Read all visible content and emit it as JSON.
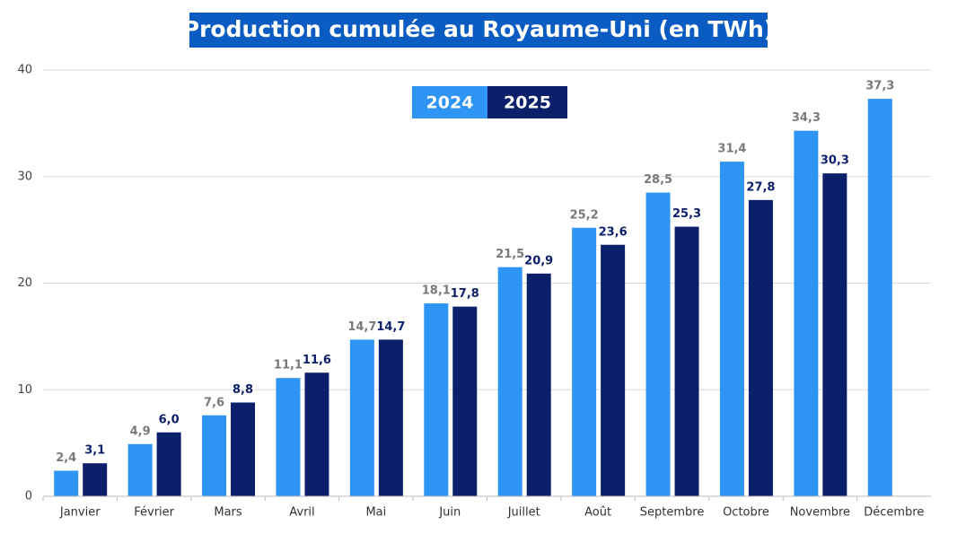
{
  "chart_data": {
    "type": "bar",
    "title": "Production cumulée au Royaume-Uni (en TWh)",
    "categories": [
      "Janvier",
      "Février",
      "Mars",
      "Avril",
      "Mai",
      "Juin",
      "Juillet",
      "Août",
      "Septembre",
      "Octobre",
      "Novembre",
      "Décembre"
    ],
    "series": [
      {
        "name": "2024",
        "color": "#2f95f5",
        "label_color": "#7a7a7a",
        "values": [
          2.4,
          4.9,
          7.6,
          11.1,
          14.7,
          18.1,
          21.5,
          25.2,
          28.5,
          31.4,
          34.3,
          37.3
        ],
        "value_labels": [
          "2,4",
          "4,9",
          "7,6",
          "11,1",
          "14,7",
          "18,1",
          "21,5",
          "25,2",
          "28,5",
          "31,4",
          "34,3",
          "37,3"
        ]
      },
      {
        "name": "2025",
        "color": "#0c1f6b",
        "label_color": "#0c1f6b",
        "values": [
          3.1,
          6.0,
          8.8,
          11.6,
          14.7,
          17.8,
          20.9,
          23.6,
          25.3,
          27.8,
          30.3,
          null
        ],
        "value_labels": [
          "3,1",
          "6,0",
          "8,8",
          "11,6",
          "14,7",
          "17,8",
          "20,9",
          "23,6",
          "25,3",
          "27,8",
          "30,3",
          null
        ]
      }
    ],
    "ylim": [
      0,
      40
    ],
    "yticks": [
      0,
      10,
      20,
      30,
      40
    ],
    "grid": true
  }
}
